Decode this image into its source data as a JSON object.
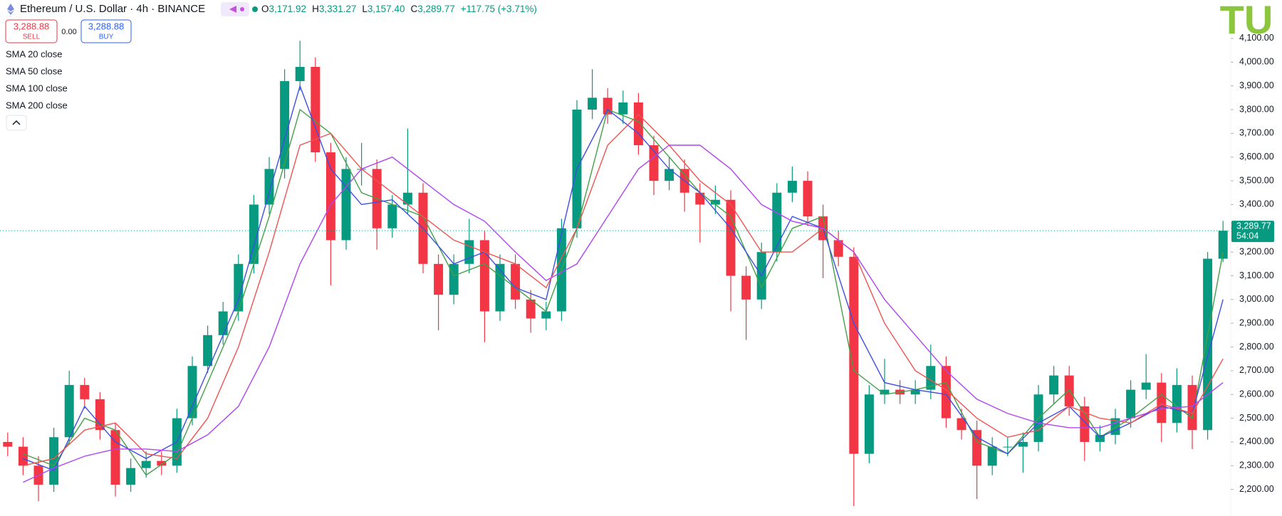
{
  "header": {
    "symbol": "Ethereum / U.S. Dollar · 4h · BINANCE",
    "ohlc": [
      {
        "key": "O",
        "value": "3,171.92"
      },
      {
        "key": "H",
        "value": "3,331.27"
      },
      {
        "key": "L",
        "value": "3,157.40"
      },
      {
        "key": "C",
        "value": "3,289.77"
      }
    ],
    "change": "+117.75 (+3.71%)"
  },
  "trade": {
    "sell_price": "3,288.88",
    "sell_label": "SELL",
    "spread": "0.00",
    "buy_price": "3,288.88",
    "buy_label": "BUY"
  },
  "price_tag": {
    "price": "3,289.77",
    "countdown": "54:04"
  },
  "watermark": "TU",
  "chart_data": {
    "type": "candlestick",
    "up_color": "#089981",
    "down_color": "#f23645",
    "last_line_color": "#089981",
    "ylim": [
      2100,
      4200
    ],
    "yticks": [
      {
        "value": 2200,
        "label": "2,200.00"
      },
      {
        "value": 2300,
        "label": "2,300.00"
      },
      {
        "value": 2400,
        "label": "2,400.00"
      },
      {
        "value": 2500,
        "label": "2,500.00"
      },
      {
        "value": 2600,
        "label": "2,600.00"
      },
      {
        "value": 2700,
        "label": "2,700.00"
      },
      {
        "value": 2800,
        "label": "2,800.00"
      },
      {
        "value": 2900,
        "label": "2,900.00"
      },
      {
        "value": 3000,
        "label": "3,000.00"
      },
      {
        "value": 3100,
        "label": "3,100.00"
      },
      {
        "value": 3200,
        "label": "3,200.00"
      },
      {
        "value": 3300,
        "label": "3,300.00"
      },
      {
        "value": 3400,
        "label": "3,400.00"
      },
      {
        "value": 3500,
        "label": "3,500.00"
      },
      {
        "value": 3600,
        "label": "3,600.00"
      },
      {
        "value": 3700,
        "label": "3,700.00"
      },
      {
        "value": 3800,
        "label": "3,800.00"
      },
      {
        "value": 3900,
        "label": "3,900.00"
      },
      {
        "value": 4000,
        "label": "4,000.00"
      },
      {
        "value": 4100,
        "label": "4,100.00"
      }
    ],
    "grid": false,
    "open": [
      2400,
      2380,
      2300,
      2220,
      2420,
      2640,
      2580,
      2450,
      2220,
      2290,
      2320,
      2300,
      2500,
      2720,
      2850,
      2950,
      3150,
      3400,
      3550,
      3920,
      3980,
      3620,
      3250,
      3550,
      3550,
      3300,
      3400,
      3450,
      3150,
      3020,
      3150,
      3250,
      2950,
      3150,
      3000,
      2920,
      2950,
      3300,
      3800,
      3850,
      3780,
      3830,
      3650,
      3500,
      3550,
      3450,
      3400,
      3420,
      3100,
      3000,
      3200,
      3450,
      3500,
      3350,
      3250,
      3180,
      2350,
      2600,
      2620,
      2600,
      2620,
      2720,
      2500,
      2450,
      2300,
      2380,
      2380,
      2400,
      2600,
      2680,
      2550,
      2400,
      2430,
      2500,
      2620,
      2650,
      2480,
      2640,
      2450,
      3171.92
    ],
    "high": [
      2440,
      2420,
      2340,
      2460,
      2700,
      2670,
      2610,
      2480,
      2330,
      2360,
      2360,
      2540,
      2760,
      2890,
      2990,
      3190,
      3440,
      3600,
      3970,
      4090,
      4020,
      3660,
      3600,
      3660,
      3590,
      3440,
      3720,
      3490,
      3190,
      3190,
      3340,
      3290,
      3190,
      3190,
      3040,
      2990,
      3340,
      3840,
      3970,
      3890,
      3880,
      3870,
      3690,
      3600,
      3590,
      3490,
      3480,
      3460,
      3140,
      3240,
      3490,
      3560,
      3540,
      3400,
      3290,
      3220,
      2640,
      2750,
      2660,
      2660,
      2810,
      2760,
      2540,
      2490,
      2420,
      2420,
      2440,
      2640,
      2720,
      2720,
      2590,
      2470,
      2540,
      2660,
      2770,
      2690,
      2710,
      2680,
      3200,
      3331.27
    ],
    "low": [
      2340,
      2260,
      2150,
      2190,
      2390,
      2540,
      2410,
      2170,
      2190,
      2250,
      2260,
      2270,
      2470,
      2690,
      2810,
      2910,
      3110,
      3360,
      3510,
      3880,
      3580,
      3060,
      3210,
      3480,
      3210,
      3260,
      3360,
      3110,
      2870,
      2980,
      3110,
      2820,
      2910,
      2960,
      2860,
      2870,
      2910,
      3260,
      3760,
      3740,
      3740,
      3610,
      3440,
      3460,
      3370,
      3240,
      3360,
      2950,
      2830,
      2960,
      3160,
      3410,
      3310,
      3090,
      3140,
      2130,
      2310,
      2560,
      2560,
      2560,
      2580,
      2460,
      2410,
      2160,
      2260,
      2340,
      2270,
      2360,
      2560,
      2510,
      2320,
      2360,
      2390,
      2460,
      2580,
      2400,
      2440,
      2370,
      2410,
      3157.4
    ],
    "close": [
      2380,
      2300,
      2220,
      2420,
      2640,
      2580,
      2450,
      2220,
      2290,
      2320,
      2300,
      2500,
      2720,
      2850,
      2950,
      3150,
      3400,
      3550,
      3920,
      3980,
      3620,
      3250,
      3550,
      3550,
      3300,
      3400,
      3450,
      3150,
      3020,
      3150,
      3250,
      2950,
      3150,
      3000,
      2920,
      2950,
      3300,
      3800,
      3850,
      3780,
      3830,
      3650,
      3500,
      3550,
      3450,
      3400,
      3420,
      3100,
      3000,
      3200,
      3450,
      3500,
      3350,
      3250,
      3180,
      2350,
      2600,
      2620,
      2600,
      2620,
      2720,
      2500,
      2450,
      2300,
      2380,
      2380,
      2400,
      2600,
      2680,
      2550,
      2400,
      2430,
      2500,
      2620,
      2650,
      2480,
      2640,
      2450,
      3171.92,
      3289.77
    ],
    "series": [
      {
        "name": "SMA 20 close",
        "color": "#43a047",
        "x": [
          1,
          3,
          5,
          7,
          9,
          11,
          13,
          15,
          17,
          19,
          21,
          23,
          25,
          27,
          29,
          31,
          33,
          35,
          37,
          39,
          41,
          43,
          45,
          47,
          49,
          51,
          53,
          55,
          57,
          59,
          61,
          63,
          65,
          67,
          69,
          71,
          73,
          75,
          77,
          79
        ],
        "values": [
          2350,
          2300,
          2500,
          2450,
          2260,
          2350,
          2650,
          2950,
          3350,
          3800,
          3700,
          3450,
          3400,
          3350,
          3100,
          3150,
          3050,
          2950,
          3300,
          3800,
          3750,
          3600,
          3450,
          3350,
          3050,
          3300,
          3350,
          2700,
          2600,
          2620,
          2650,
          2400,
          2350,
          2500,
          2620,
          2420,
          2500,
          2600,
          2500,
          3200
        ]
      },
      {
        "name": "SMA 50 close",
        "color": "#3d4fe0",
        "x": [
          1,
          3,
          5,
          7,
          9,
          11,
          13,
          15,
          17,
          19,
          21,
          23,
          25,
          27,
          29,
          31,
          33,
          35,
          37,
          39,
          41,
          43,
          45,
          47,
          49,
          51,
          53,
          55,
          57,
          59,
          61,
          63,
          65,
          67,
          69,
          71,
          73,
          75,
          77,
          79
        ],
        "values": [
          2330,
          2280,
          2550,
          2400,
          2330,
          2400,
          2700,
          3000,
          3450,
          3900,
          3550,
          3400,
          3420,
          3300,
          3150,
          3200,
          3050,
          3000,
          3550,
          3800,
          3700,
          3550,
          3450,
          3300,
          3100,
          3350,
          3300,
          2900,
          2650,
          2620,
          2600,
          2420,
          2350,
          2480,
          2550,
          2420,
          2480,
          2550,
          2520,
          3000
        ]
      },
      {
        "name": "SMA 100 close",
        "color": "#ef5350",
        "x": [
          1,
          3,
          5,
          7,
          9,
          11,
          13,
          15,
          17,
          19,
          21,
          23,
          25,
          27,
          29,
          31,
          33,
          35,
          37,
          39,
          41,
          43,
          45,
          47,
          49,
          51,
          53,
          55,
          57,
          59,
          61,
          63,
          65,
          67,
          69,
          71,
          73,
          75,
          77,
          79
        ],
        "values": [
          2300,
          2330,
          2450,
          2480,
          2350,
          2330,
          2500,
          2800,
          3200,
          3650,
          3700,
          3550,
          3450,
          3350,
          3250,
          3200,
          3150,
          3050,
          3300,
          3650,
          3780,
          3650,
          3500,
          3400,
          3200,
          3200,
          3300,
          3200,
          2900,
          2700,
          2620,
          2500,
          2420,
          2450,
          2550,
          2500,
          2480,
          2560,
          2520,
          2750
        ]
      },
      {
        "name": "SMA 200 close",
        "color": "#b044f2",
        "x": [
          1,
          3,
          5,
          7,
          9,
          11,
          13,
          15,
          17,
          19,
          21,
          23,
          25,
          27,
          29,
          31,
          33,
          35,
          37,
          39,
          41,
          43,
          45,
          47,
          49,
          51,
          53,
          55,
          57,
          59,
          61,
          63,
          65,
          67,
          69,
          71,
          73,
          75,
          77,
          79
        ],
        "values": [
          2230,
          2290,
          2340,
          2370,
          2370,
          2360,
          2430,
          2550,
          2800,
          3150,
          3400,
          3550,
          3600,
          3500,
          3400,
          3330,
          3200,
          3080,
          3150,
          3350,
          3550,
          3650,
          3650,
          3550,
          3400,
          3330,
          3300,
          3200,
          3000,
          2850,
          2700,
          2580,
          2520,
          2480,
          2460,
          2460,
          2500,
          2540,
          2550,
          2650
        ]
      }
    ]
  }
}
